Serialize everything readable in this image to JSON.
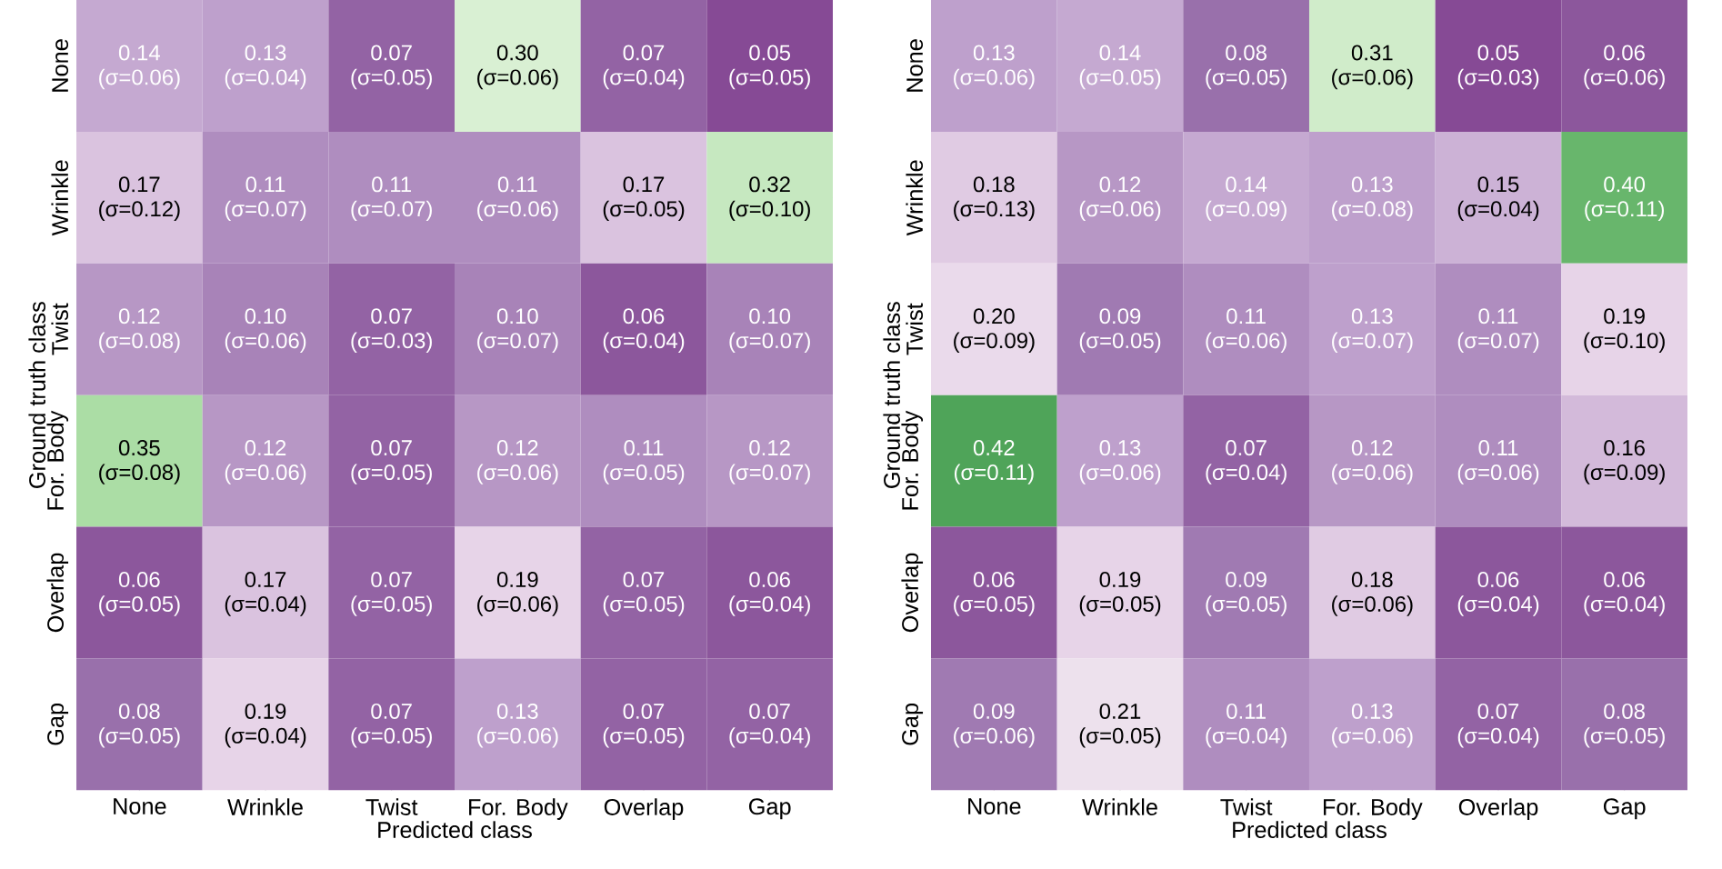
{
  "chart_data": [
    {
      "type": "heatmap",
      "xlabel": "Predicted class",
      "ylabel": "Ground truth class",
      "data_labels": true,
      "categories": [
        "None",
        "Wrinkle",
        "Twist",
        "For. Body",
        "Overlap",
        "Gap"
      ],
      "y_categories": [
        "None",
        "Wrinkle",
        "Twist",
        "For. Body",
        "Overlap",
        "Gap"
      ],
      "cells": [
        [
          0.14,
          0.13,
          0.07,
          0.3,
          0.07,
          0.05
        ],
        [
          0.17,
          0.11,
          0.11,
          0.11,
          0.17,
          0.32
        ],
        [
          0.12,
          0.1,
          0.07,
          0.1,
          0.06,
          0.1
        ],
        [
          0.35,
          0.12,
          0.07,
          0.12,
          0.11,
          0.12
        ],
        [
          0.06,
          0.17,
          0.07,
          0.19,
          0.07,
          0.06
        ],
        [
          0.08,
          0.19,
          0.07,
          0.13,
          0.07,
          0.07
        ]
      ],
      "cell_labels": [
        [
          "0.14",
          "0.13",
          "0.07",
          "0.30",
          "0.07",
          "0.05"
        ],
        [
          "0.17",
          "0.11",
          "0.11",
          "0.11",
          "0.17",
          "0.32"
        ],
        [
          "0.12",
          "0.10",
          "0.07",
          "0.10",
          "0.06",
          "0.10"
        ],
        [
          "0.35",
          "0.12",
          "0.07",
          "0.12",
          "0.11",
          "0.12"
        ],
        [
          "0.06",
          "0.17",
          "0.07",
          "0.19",
          "0.07",
          "0.06"
        ],
        [
          "0.08",
          "0.19",
          "0.07",
          "0.13",
          "0.07",
          "0.07"
        ]
      ],
      "annotations": [
        "(σ=0.06)",
        "(σ=0.04)",
        "(σ=0.05)",
        "(σ=0.06)",
        "(σ=0.04)",
        "(σ=0.05)",
        "(σ=0.12)",
        "(σ=0.07)",
        "(σ=0.07)",
        "(σ=0.06)",
        "(σ=0.05)",
        "(σ=0.10)",
        "(σ=0.08)",
        "(σ=0.06)",
        "(σ=0.03)",
        "(σ=0.07)",
        "(σ=0.04)",
        "(σ=0.07)",
        "(σ=0.08)",
        "(σ=0.06)",
        "(σ=0.05)",
        "(σ=0.06)",
        "(σ=0.05)",
        "(σ=0.07)",
        "(σ=0.05)",
        "(σ=0.04)",
        "(σ=0.05)",
        "(σ=0.06)",
        "(σ=0.05)",
        "(σ=0.04)",
        "(σ=0.05)",
        "(σ=0.04)",
        "(σ=0.05)",
        "(σ=0.06)",
        "(σ=0.05)",
        "(σ=0.04)"
      ]
    },
    {
      "type": "heatmap",
      "xlabel": "Predicted class",
      "ylabel": "Ground truth class",
      "data_labels": true,
      "categories": [
        "None",
        "Wrinkle",
        "Twist",
        "For. Body",
        "Overlap",
        "Gap"
      ],
      "y_categories": [
        "None",
        "Wrinkle",
        "Twist",
        "For. Body",
        "Overlap",
        "Gap"
      ],
      "cells": [
        [
          0.13,
          0.14,
          0.08,
          0.31,
          0.05,
          0.06
        ],
        [
          0.18,
          0.12,
          0.14,
          0.13,
          0.15,
          0.4
        ],
        [
          0.2,
          0.09,
          0.11,
          0.13,
          0.11,
          0.19
        ],
        [
          0.42,
          0.13,
          0.07,
          0.12,
          0.11,
          0.16
        ],
        [
          0.06,
          0.19,
          0.09,
          0.18,
          0.06,
          0.06
        ],
        [
          0.09,
          0.21,
          0.11,
          0.13,
          0.07,
          0.08
        ]
      ],
      "cell_labels": [
        [
          "0.13",
          "0.14",
          "0.08",
          "0.31",
          "0.05",
          "0.06"
        ],
        [
          "0.18",
          "0.12",
          "0.14",
          "0.13",
          "0.15",
          "0.40"
        ],
        [
          "0.20",
          "0.09",
          "0.11",
          "0.13",
          "0.11",
          "0.19"
        ],
        [
          "0.42",
          "0.13",
          "0.07",
          "0.12",
          "0.11",
          "0.16"
        ],
        [
          "0.06",
          "0.19",
          "0.09",
          "0.18",
          "0.06",
          "0.06"
        ],
        [
          "0.09",
          "0.21",
          "0.11",
          "0.13",
          "0.07",
          "0.08"
        ]
      ],
      "annotations": [
        "(σ=0.06)",
        "(σ=0.05)",
        "(σ=0.05)",
        "(σ=0.06)",
        "(σ=0.03)",
        "(σ=0.06)",
        "(σ=0.13)",
        "(σ=0.06)",
        "(σ=0.09)",
        "(σ=0.08)",
        "(σ=0.04)",
        "(σ=0.11)",
        "(σ=0.09)",
        "(σ=0.05)",
        "(σ=0.06)",
        "(σ=0.07)",
        "(σ=0.07)",
        "(σ=0.10)",
        "(σ=0.11)",
        "(σ=0.06)",
        "(σ=0.04)",
        "(σ=0.06)",
        "(σ=0.06)",
        "(σ=0.09)",
        "(σ=0.05)",
        "(σ=0.05)",
        "(σ=0.05)",
        "(σ=0.06)",
        "(σ=0.04)",
        "(σ=0.04)",
        "(σ=0.06)",
        "(σ=0.05)",
        "(σ=0.04)",
        "(σ=0.06)",
        "(σ=0.04)",
        "(σ=0.05)"
      ]
    }
  ]
}
